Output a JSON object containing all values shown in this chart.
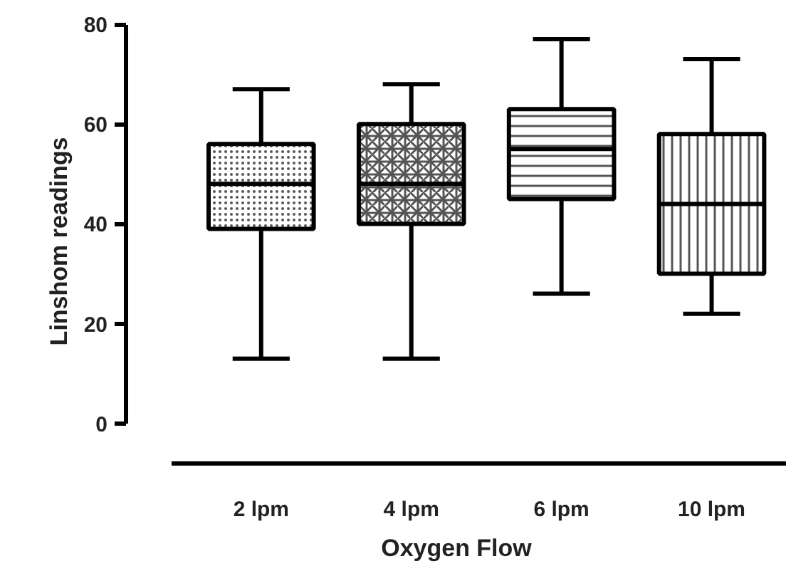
{
  "chart_data": {
    "type": "box",
    "xlabel": "Oxygen Flow",
    "ylabel": "Linshom readings",
    "categories": [
      "2 lpm",
      "4 lpm",
      "6 lpm",
      "10 lpm"
    ],
    "boxes": [
      {
        "low": 13,
        "q1": 39,
        "median": 48,
        "q3": 56,
        "high": 67
      },
      {
        "low": 13,
        "q1": 40,
        "median": 48,
        "q3": 60,
        "high": 68
      },
      {
        "low": 26,
        "q1": 45,
        "median": 55,
        "q3": 63,
        "high": 77
      },
      {
        "low": 22,
        "q1": 30,
        "median": 44,
        "q3": 58,
        "high": 73
      }
    ],
    "ylim": [
      0,
      80
    ],
    "yticks": [
      0,
      20,
      40,
      60,
      80
    ]
  }
}
